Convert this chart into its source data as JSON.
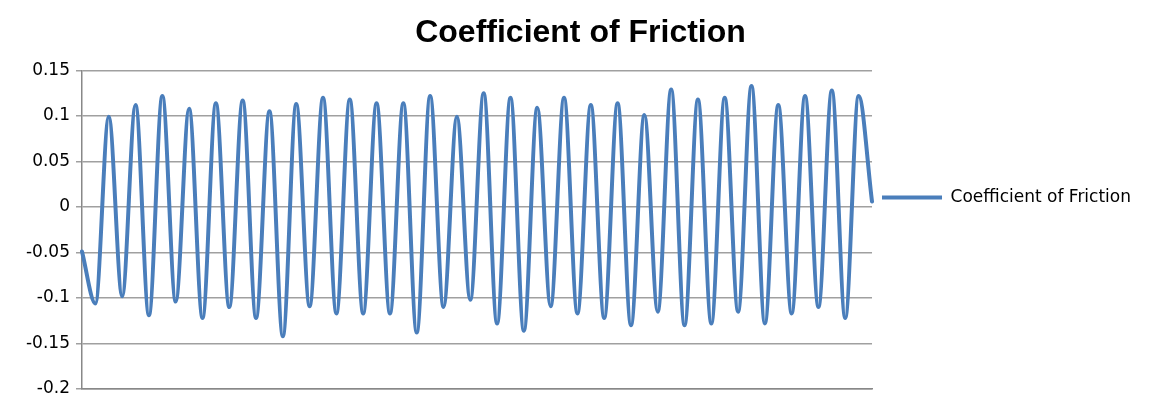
{
  "chart_data": {
    "type": "line",
    "title": "Coefficient of Friction",
    "categories": [
      null,
      null,
      null,
      null,
      null,
      null,
      null,
      null,
      null,
      null,
      null,
      null,
      null,
      null,
      null,
      null,
      null,
      null,
      null,
      null,
      null,
      null,
      null,
      null,
      null,
      null,
      null,
      null,
      null,
      null,
      null,
      null,
      null,
      null,
      null,
      null,
      null,
      null,
      null,
      null,
      null,
      null,
      null,
      null,
      null,
      null,
      null,
      null,
      null,
      null,
      null,
      null,
      null,
      null,
      null,
      null,
      null,
      null,
      null,
      null
    ],
    "series": [
      {
        "name": "Coefficient of Friction",
        "color": "#4a7ebb",
        "values": [
          -0.049,
          -0.106,
          0.099,
          -0.098,
          0.112,
          -0.119,
          0.122,
          -0.104,
          0.108,
          -0.122,
          0.114,
          -0.11,
          0.117,
          -0.122,
          0.105,
          -0.142,
          0.113,
          -0.109,
          0.12,
          -0.117,
          0.118,
          -0.117,
          0.114,
          -0.117,
          0.114,
          -0.138,
          0.122,
          -0.11,
          0.099,
          -0.102,
          0.125,
          -0.128,
          0.12,
          -0.136,
          0.109,
          -0.109,
          0.12,
          -0.117,
          0.112,
          -0.122,
          0.114,
          -0.13,
          0.101,
          -0.115,
          0.129,
          -0.13,
          0.118,
          -0.128,
          0.12,
          -0.115,
          0.133,
          -0.128,
          0.112,
          -0.117,
          0.122,
          -0.11,
          0.128,
          -0.122,
          0.122,
          0.006
        ]
      }
    ],
    "ylim": [
      -0.2,
      0.15
    ],
    "yticks": [
      -0.2,
      -0.15,
      -0.1,
      -0.05,
      0,
      0.05,
      0.1,
      0.15
    ],
    "grid": "y",
    "legend": "right",
    "marker": "none",
    "line_style": "solid",
    "tick_labels": "y"
  }
}
